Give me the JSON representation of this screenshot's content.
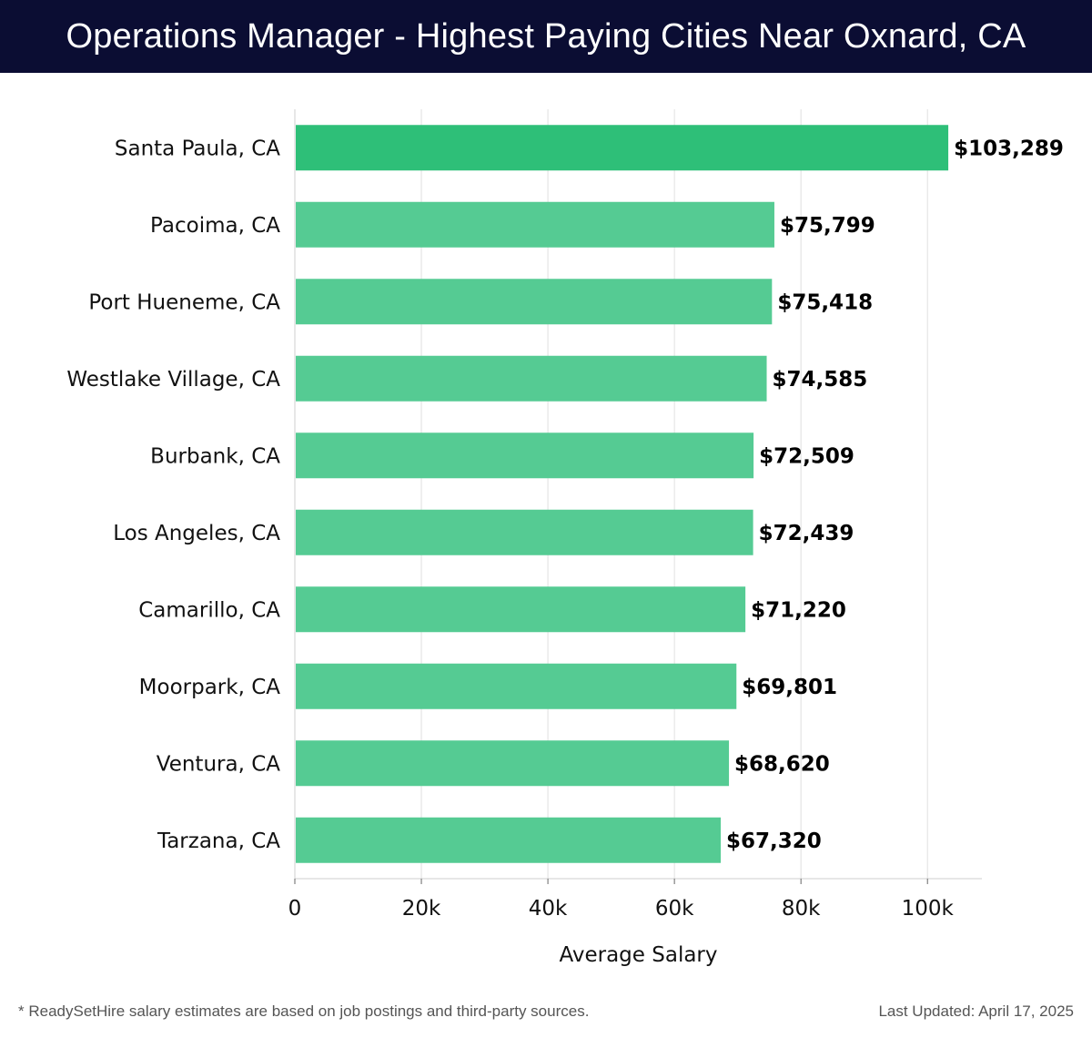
{
  "header": {
    "title": "Operations Manager - Highest Paying Cities Near Oxnard, CA"
  },
  "colors": {
    "header_bg": "#0b0d33",
    "bar_top": "#2ebf78",
    "bar": "#55cb93",
    "grid": "#e0e0e0"
  },
  "chart_data": {
    "type": "bar",
    "orientation": "horizontal",
    "title": "Operations Manager - Highest Paying Cities Near Oxnard, CA",
    "xlabel": "Average Salary",
    "ylabel": "",
    "categories": [
      "Santa Paula, CA",
      "Pacoima, CA",
      "Port Hueneme, CA",
      "Westlake Village, CA",
      "Burbank, CA",
      "Los Angeles, CA",
      "Camarillo, CA",
      "Moorpark, CA",
      "Ventura, CA",
      "Tarzana, CA"
    ],
    "values": [
      103289,
      75799,
      75418,
      74585,
      72509,
      72439,
      71220,
      69801,
      68620,
      67320
    ],
    "value_labels": [
      "$103,289",
      "$75,799",
      "$75,418",
      "$74,585",
      "$72,509",
      "$72,439",
      "$71,220",
      "$69,801",
      "$68,620",
      "$67,320"
    ],
    "xticks": [
      0,
      20000,
      40000,
      60000,
      80000,
      100000
    ],
    "xtick_labels": [
      "0",
      "20k",
      "40k",
      "60k",
      "80k",
      "100k"
    ],
    "xlim": [
      0,
      108600
    ],
    "grid": "vertical"
  },
  "footer": {
    "note": "* ReadySetHire salary estimates are based on job postings and third-party sources.",
    "updated": "Last Updated: April 17, 2025"
  }
}
